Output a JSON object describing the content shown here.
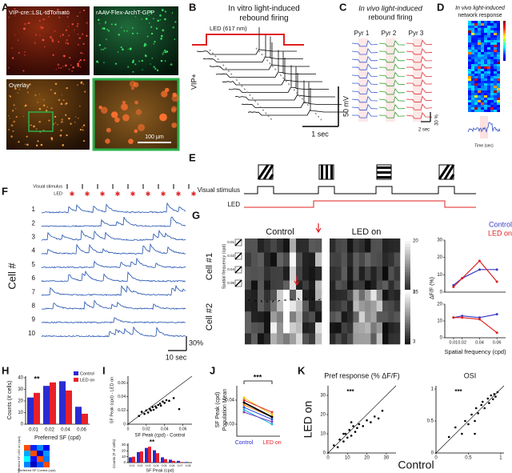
{
  "panel_labels": [
    "A",
    "B",
    "C",
    "D",
    "E",
    "F",
    "G",
    "H",
    "I",
    "J",
    "K"
  ],
  "a": {
    "captions": [
      "VIP-cre::LSL-tdTomato",
      "rAAV-Flex-ArchT-GFP",
      "Overlay"
    ],
    "scale_bar": "100 µm"
  },
  "b": {
    "title": [
      "In vitro light-induced",
      "rebound firing"
    ],
    "led": "LED (617 nm)",
    "cell": "VIP+",
    "scale_y": "50 mV",
    "scale_x": "1 sec"
  },
  "c": {
    "title": [
      "In vivo light-induced",
      "rebound firing"
    ],
    "cells": [
      "Pyr 1",
      "Pyr 2",
      "Pyr 3"
    ],
    "colors": [
      "#3b5bd0",
      "#2ca02c",
      "#e03030"
    ],
    "scale_y": "30 %",
    "scale_x": "2 sec"
  },
  "d": {
    "title": [
      "In vivo light-induced",
      "network response"
    ],
    "x_label": "Time (sec)"
  },
  "e": {
    "rows": [
      "Visual stimulus",
      "LED"
    ]
  },
  "f": {
    "rows": [
      "Visual stimulus",
      "LED"
    ],
    "cells": [
      1,
      2,
      3,
      4,
      5,
      6,
      7,
      8,
      9,
      10
    ],
    "y_label": "Cell #",
    "scale_y": "30%",
    "scale_x": "10 sec"
  },
  "g": {
    "conditions": [
      "Control",
      "LED on"
    ],
    "cells": [
      "Cell #1",
      "Cell #2"
    ],
    "sf_label": "Spatial frequency (cpd)",
    "sf_values": [
      0.01,
      0.02,
      0.04,
      0.06
    ],
    "colorbars": [
      [
        20,
        3
      ],
      [
        15,
        3
      ]
    ],
    "tuning": {
      "series": [
        {
          "name": "Control",
          "color": "#3b3bc4"
        },
        {
          "name": "LED on",
          "color": "#e02020"
        }
      ],
      "y_label": "ΔF/F (%)",
      "x_label": "Spatial frequency (cpd)",
      "x": [
        0.01,
        0.02,
        0.04,
        0.06
      ],
      "xlim": [
        0,
        0.07
      ],
      "xticks": [
        0.01,
        0.02,
        0.04,
        0.06
      ],
      "cells": [
        {
          "ylim": [
            0,
            30
          ],
          "yticks": [
            0,
            10,
            20,
            30
          ],
          "values": [
            [
              4,
              8,
              13,
              13
            ],
            [
              3,
              8,
              18,
              6
            ]
          ]
        },
        {
          "ylim": [
            0,
            20
          ],
          "yticks": [
            0,
            10,
            20
          ],
          "values": [
            [
              12,
              13,
              12,
              14
            ],
            [
              12,
              12,
              11,
              3
            ]
          ]
        }
      ]
    }
  },
  "h": {
    "significance": "**",
    "y_label": "Counts (# cells)",
    "ylim": [
      0,
      40
    ],
    "yticks": [
      0,
      10,
      20,
      30,
      40
    ],
    "categories": [
      0.01,
      0.02,
      0.04,
      0.06
    ],
    "x_label": "Preferred SF (cpd)",
    "series": [
      {
        "name": "Control",
        "color": "#2b2bd0",
        "values": [
          23,
          33,
          37,
          15
        ]
      },
      {
        "name": "LED on",
        "color": "#e8202a",
        "values": [
          27,
          36,
          29,
          9
        ]
      }
    ],
    "matrix_labels": [
      "Preferred SF LED on (cpd)",
      "Preferred SF Control (cpd)"
    ]
  },
  "i": {
    "scatter": {
      "y_label": "SF Peak (cpd) - LED on",
      "x_label": "SF Peak (cpd) - Control",
      "xlim": [
        0,
        0.07
      ],
      "ylim": [
        0,
        0.07
      ],
      "xticks": [
        0,
        0.02,
        0.04,
        0.06
      ],
      "yticks": [
        0,
        0.02,
        0.04,
        0.06
      ],
      "x": [
        0.012,
        0.015,
        0.018,
        0.02,
        0.022,
        0.024,
        0.025,
        0.027,
        0.028,
        0.03,
        0.031,
        0.033,
        0.035,
        0.036,
        0.038,
        0.04,
        0.042,
        0.045,
        0.05,
        0.056
      ],
      "y": [
        0.012,
        0.018,
        0.015,
        0.02,
        0.017,
        0.022,
        0.02,
        0.025,
        0.021,
        0.026,
        0.024,
        0.028,
        0.03,
        0.027,
        0.033,
        0.031,
        0.035,
        0.034,
        0.038,
        0.022
      ]
    },
    "histogram": {
      "significance": "**",
      "y_label": "Counts (# of cells)",
      "ylim": [
        0,
        30
      ],
      "yticks": [
        0,
        10,
        20,
        30
      ],
      "x_label": "SF Peak (cpd)",
      "categories": [
        0.01,
        0.02,
        0.03,
        0.04,
        0.05,
        0.06,
        0.07,
        0.08
      ],
      "series": [
        {
          "color": "#2b2bd0",
          "values": [
            9,
            18,
            25,
            21,
            9,
            5,
            3,
            1
          ]
        },
        {
          "color": "#e8202a",
          "values": [
            10,
            19,
            27,
            16,
            6,
            3,
            1,
            0
          ]
        }
      ]
    }
  },
  "j": {
    "significance": "***",
    "y_label": [
      "SF Peak (cpd)",
      "Population Mean"
    ],
    "ylim": [
      0.025,
      0.045
    ],
    "yticks": [
      0.03,
      0.04
    ],
    "categories": [
      "Control",
      "LED on"
    ],
    "category_colors": [
      "#2b2bd0",
      "#e8202a"
    ],
    "series": [
      {
        "color": "#f2c500",
        "values": [
          0.041,
          0.034
        ]
      },
      {
        "color": "#e83030",
        "values": [
          0.04,
          0.035
        ]
      },
      {
        "color": "#f08020",
        "values": [
          0.038,
          0.033
        ]
      },
      {
        "color": "#3050e0",
        "values": [
          0.037,
          0.032
        ]
      },
      {
        "color": "#20b8e0",
        "values": [
          0.036,
          0.03
        ]
      },
      {
        "color": "#8040c0",
        "values": [
          0.035,
          0.031
        ]
      },
      {
        "color": "#000000",
        "values": [
          0.039,
          0.033
        ]
      }
    ]
  },
  "k": {
    "y_label": "LED on",
    "x_label": "Control",
    "plots": [
      {
        "title": "Pref response (% ΔF/F)",
        "significance": "***",
        "xlim": [
          0,
          35
        ],
        "ylim": [
          0,
          35
        ],
        "xticks": [
          0,
          10,
          20,
          30
        ],
        "yticks": [
          0,
          10,
          20,
          30
        ],
        "x": [
          3,
          5,
          6,
          8,
          9,
          10,
          11,
          12,
          13,
          14,
          15,
          16,
          18,
          20,
          22,
          24,
          26,
          28,
          8,
          12
        ],
        "y": [
          4,
          3,
          7,
          6,
          10,
          8,
          12,
          9,
          14,
          11,
          13,
          15,
          14,
          17,
          16,
          19,
          18,
          22,
          10,
          16
        ]
      },
      {
        "title": "OSI",
        "significance": "***",
        "xlim": [
          0,
          1.05
        ],
        "ylim": [
          0,
          1.05
        ],
        "xticks": [
          0,
          0.5,
          1
        ],
        "yticks": [
          0,
          0.5,
          1
        ],
        "x": [
          0.2,
          0.3,
          0.4,
          0.45,
          0.5,
          0.55,
          0.6,
          0.62,
          0.65,
          0.7,
          0.72,
          0.75,
          0.8,
          0.82,
          0.85,
          0.88,
          0.9,
          0.92,
          0.95,
          0.6
        ],
        "y": [
          0.25,
          0.4,
          0.3,
          0.5,
          0.45,
          0.6,
          0.5,
          0.7,
          0.62,
          0.75,
          0.8,
          0.7,
          0.85,
          0.78,
          0.9,
          0.84,
          0.92,
          0.88,
          0.95,
          0.3
        ]
      }
    ]
  }
}
